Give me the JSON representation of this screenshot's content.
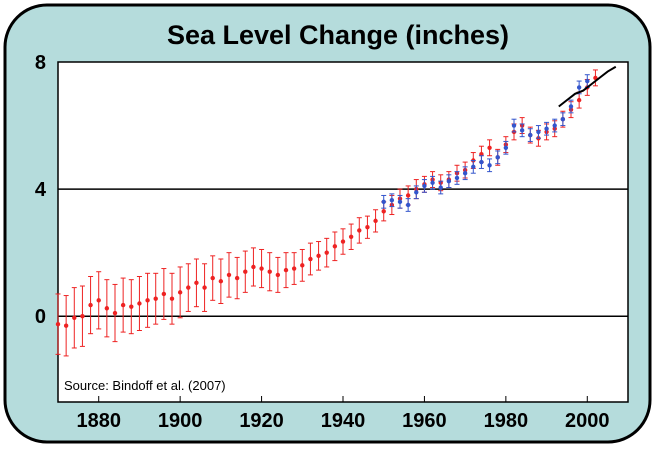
{
  "chart_data": {
    "type": "line",
    "title": "Sea Level Change (inches)",
    "source": "Source: Bindoff et al. (2007)",
    "xlim": [
      1870,
      2010
    ],
    "ylim": [
      -2.7,
      8
    ],
    "yticks": [
      0,
      4,
      8
    ],
    "xticks": [
      1880,
      1900,
      1920,
      1940,
      1960,
      1980,
      2000
    ],
    "grid": "horizontal",
    "colors": {
      "panel_bg": "#b5dcdc",
      "plot_bg": "#ffffff",
      "red_series": "#ee2222",
      "blue_series": "#3355cc",
      "black_series": "#000000"
    },
    "series": [
      {
        "color_key": "red_series",
        "marker": "dot",
        "error_bars": true,
        "x": [
          1870,
          1872,
          1874,
          1876,
          1878,
          1880,
          1882,
          1884,
          1886,
          1888,
          1890,
          1892,
          1894,
          1896,
          1898,
          1900,
          1902,
          1904,
          1906,
          1908,
          1910,
          1912,
          1914,
          1916,
          1918,
          1920,
          1922,
          1924,
          1926,
          1928,
          1930,
          1932,
          1934,
          1936,
          1938,
          1940,
          1942,
          1944,
          1946,
          1948,
          1950,
          1952,
          1954,
          1956,
          1958,
          1960,
          1962,
          1964,
          1966,
          1968,
          1970,
          1972,
          1974,
          1976,
          1978,
          1980,
          1982,
          1984,
          1986,
          1988,
          1990,
          1992,
          1994,
          1996,
          1998,
          2000,
          2002
        ],
        "y": [
          -0.25,
          -0.3,
          -0.05,
          0.0,
          0.35,
          0.5,
          0.25,
          0.1,
          0.35,
          0.3,
          0.4,
          0.5,
          0.55,
          0.7,
          0.55,
          0.75,
          0.9,
          1.05,
          0.9,
          1.2,
          1.1,
          1.3,
          1.2,
          1.4,
          1.55,
          1.5,
          1.4,
          1.3,
          1.45,
          1.5,
          1.6,
          1.8,
          1.9,
          2.0,
          2.2,
          2.35,
          2.5,
          2.7,
          2.8,
          3.0,
          3.3,
          3.5,
          3.7,
          3.8,
          4.0,
          4.15,
          4.3,
          4.2,
          4.3,
          4.5,
          4.6,
          4.9,
          5.1,
          5.3,
          5.0,
          5.4,
          5.8,
          6.0,
          5.7,
          5.6,
          5.8,
          5.9,
          6.2,
          6.5,
          6.8,
          7.2,
          7.5
        ],
        "err": [
          0.95,
          0.95,
          0.95,
          0.95,
          0.9,
          0.9,
          0.9,
          0.9,
          0.85,
          0.85,
          0.85,
          0.85,
          0.8,
          0.8,
          0.8,
          0.8,
          0.75,
          0.75,
          0.75,
          0.7,
          0.7,
          0.7,
          0.65,
          0.65,
          0.6,
          0.6,
          0.6,
          0.55,
          0.55,
          0.5,
          0.5,
          0.5,
          0.45,
          0.45,
          0.45,
          0.4,
          0.4,
          0.4,
          0.35,
          0.35,
          0.3,
          0.3,
          0.3,
          0.3,
          0.3,
          0.25,
          0.25,
          0.25,
          0.25,
          0.25,
          0.25,
          0.25,
          0.25,
          0.25,
          0.25,
          0.25,
          0.25,
          0.25,
          0.25,
          0.25,
          0.25,
          0.25,
          0.25,
          0.25,
          0.25,
          0.25,
          0.25
        ]
      },
      {
        "color_key": "blue_series",
        "marker": "dot",
        "error_bars": true,
        "x": [
          1950,
          1952,
          1954,
          1956,
          1958,
          1960,
          1962,
          1964,
          1966,
          1968,
          1970,
          1972,
          1974,
          1976,
          1978,
          1980,
          1982,
          1984,
          1986,
          1988,
          1990,
          1992,
          1994,
          1996,
          1998,
          2000
        ],
        "y": [
          3.6,
          3.65,
          3.6,
          3.5,
          3.9,
          4.1,
          4.2,
          4.05,
          4.25,
          4.35,
          4.5,
          4.7,
          4.85,
          4.75,
          5.0,
          5.3,
          6.0,
          5.85,
          5.7,
          5.8,
          5.9,
          6.0,
          6.2,
          6.6,
          7.2,
          7.4
        ],
        "err": [
          0.2,
          0.2,
          0.2,
          0.2,
          0.2,
          0.2,
          0.2,
          0.2,
          0.2,
          0.2,
          0.2,
          0.2,
          0.2,
          0.2,
          0.2,
          0.2,
          0.2,
          0.2,
          0.2,
          0.2,
          0.2,
          0.2,
          0.2,
          0.2,
          0.2,
          0.2
        ]
      },
      {
        "color_key": "black_series",
        "marker": "none",
        "error_bars": false,
        "x": [
          1993,
          1995,
          1997,
          1999,
          2001,
          2003,
          2005,
          2007
        ],
        "y": [
          6.6,
          6.8,
          7.0,
          7.1,
          7.3,
          7.5,
          7.7,
          7.85
        ]
      }
    ]
  }
}
